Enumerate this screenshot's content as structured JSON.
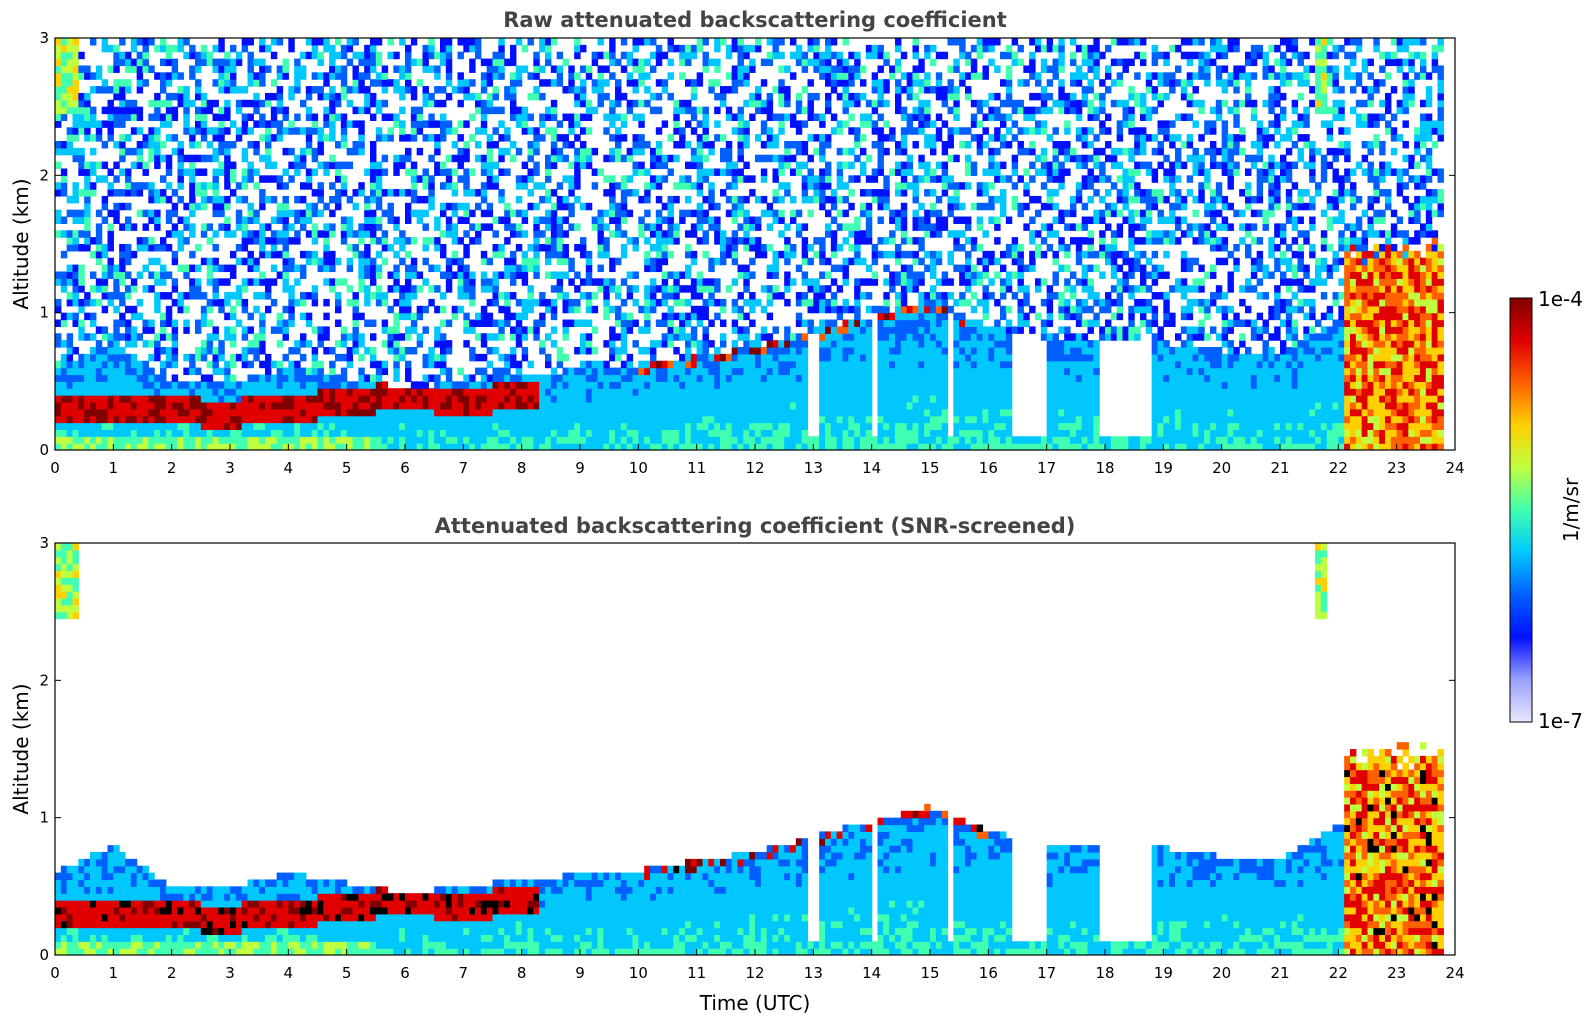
{
  "chart_data": [
    {
      "type": "heatmap",
      "title": "Raw attenuated backscattering coefficient",
      "xlabel": "",
      "ylabel": "Altitude (km)",
      "xlim": [
        0,
        24
      ],
      "ylim": [
        0,
        3
      ],
      "xticks": [
        "0",
        "1",
        "2",
        "3",
        "4",
        "5",
        "6",
        "7",
        "8",
        "9",
        "10",
        "11",
        "12",
        "13",
        "14",
        "15",
        "16",
        "17",
        "18",
        "19",
        "20",
        "21",
        "22",
        "23",
        "24"
      ],
      "yticks": [
        "0",
        "1",
        "2",
        "3"
      ],
      "screened": false
    },
    {
      "type": "heatmap",
      "title": "Attenuated backscattering coefficient (SNR-screened)",
      "xlabel": "Time (UTC)",
      "ylabel": "Altitude (km)",
      "xlim": [
        0,
        24
      ],
      "ylim": [
        0,
        3
      ],
      "xticks": [
        "0",
        "1",
        "2",
        "3",
        "4",
        "5",
        "6",
        "7",
        "8",
        "9",
        "10",
        "11",
        "12",
        "13",
        "14",
        "15",
        "16",
        "17",
        "18",
        "19",
        "20",
        "21",
        "22",
        "23",
        "24"
      ],
      "yticks": [
        "0",
        "1",
        "2",
        "3"
      ],
      "screened": true
    }
  ],
  "colorbar": {
    "label": "1/m/sr",
    "max_label": "1e-4",
    "min_label": "1e-7",
    "colors": [
      "#e8e8ff",
      "#9aa0ff",
      "#0010ff",
      "#0060ff",
      "#00c8ff",
      "#40ffb0",
      "#c0ff40",
      "#ffd000",
      "#ff6000",
      "#e00000",
      "#800000"
    ]
  },
  "features": {
    "boundary_layer_top_km": [
      [
        0,
        0.6
      ],
      [
        1,
        0.8
      ],
      [
        2,
        0.5
      ],
      [
        3,
        0.5
      ],
      [
        4,
        0.6
      ],
      [
        6,
        0.45
      ],
      [
        8,
        0.55
      ],
      [
        10,
        0.62
      ],
      [
        12,
        0.75
      ],
      [
        14,
        0.98
      ],
      [
        15,
        1.08
      ],
      [
        16,
        0.9
      ],
      [
        17,
        0.82
      ],
      [
        18,
        0.8
      ],
      [
        19,
        0.78
      ],
      [
        20,
        0.72
      ],
      [
        21,
        0.7
      ],
      [
        22,
        0.95
      ],
      [
        23,
        0.9
      ],
      [
        24,
        0.9
      ]
    ],
    "aerosol_layer_km": [
      [
        0,
        0.3
      ],
      [
        1,
        0.32
      ],
      [
        2,
        0.28
      ],
      [
        3,
        0.27
      ],
      [
        4,
        0.3
      ],
      [
        6,
        0.4
      ],
      [
        7,
        0.35
      ],
      [
        8,
        0.4
      ]
    ],
    "evening_cloud_hours": [
      22.1,
      23.8
    ],
    "evening_cloud_top_km": 1.55,
    "upper_cloud_patches": [
      {
        "t0": 0.05,
        "t1": 0.4,
        "z0": 2.45,
        "z1": 3.0
      },
      {
        "t0": 21.6,
        "t1": 21.75,
        "z0": 2.45,
        "z1": 3.0
      }
    ],
    "data_gaps_hours": [
      13.0,
      14.05,
      15.35,
      16.45,
      16.6,
      16.75,
      16.9,
      17.95,
      18.1,
      18.25,
      18.4,
      18.55,
      18.7
    ]
  }
}
